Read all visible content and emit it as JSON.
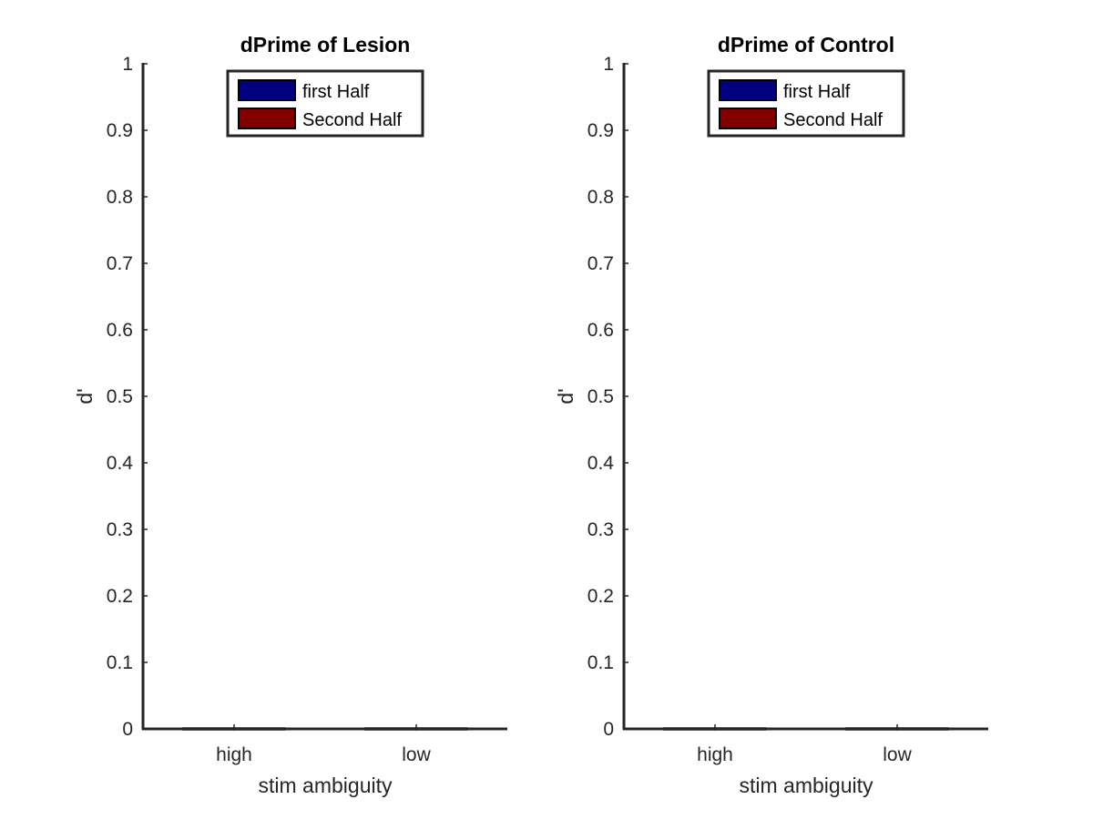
{
  "chart_data": [
    {
      "type": "bar",
      "title": "dPrime of Lesion",
      "xlabel": "stim ambiguity",
      "ylabel": "d'",
      "categories": [
        "high",
        "low"
      ],
      "ylim": [
        0,
        1
      ],
      "yticks": [
        "0",
        "0.1",
        "0.2",
        "0.3",
        "0.4",
        "0.5",
        "0.6",
        "0.7",
        "0.8",
        "0.9",
        "1"
      ],
      "series": [
        {
          "name": "first Half",
          "color": "#000080",
          "values": [
            0,
            0
          ]
        },
        {
          "name": "Second Half",
          "color": "#800000",
          "values": [
            0,
            0
          ]
        }
      ],
      "legend": "top-center",
      "grid": false
    },
    {
      "type": "bar",
      "title": "dPrime of Control",
      "xlabel": "stim ambiguity",
      "ylabel": "d'",
      "categories": [
        "high",
        "low"
      ],
      "ylim": [
        0,
        1
      ],
      "yticks": [
        "0",
        "0.1",
        "0.2",
        "0.3",
        "0.4",
        "0.5",
        "0.6",
        "0.7",
        "0.8",
        "0.9",
        "1"
      ],
      "series": [
        {
          "name": "first Half",
          "color": "#000080",
          "values": [
            0,
            0
          ]
        },
        {
          "name": "Second Half",
          "color": "#800000",
          "values": [
            0,
            0
          ]
        }
      ],
      "legend": "top-center",
      "grid": false
    }
  ]
}
